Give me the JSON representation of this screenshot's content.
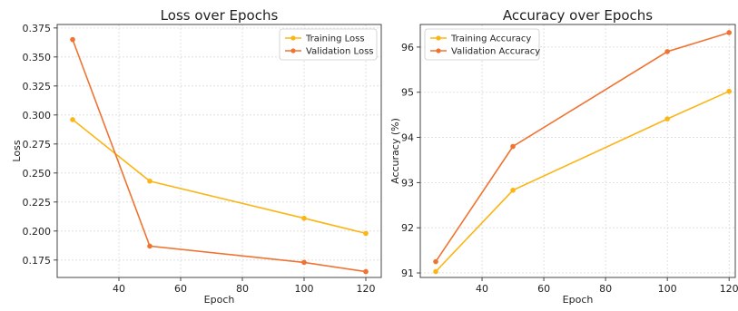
{
  "chart_data": [
    {
      "type": "line",
      "title": "Loss over Epochs",
      "xlabel": "Epoch",
      "ylabel": "Loss",
      "xlim": [
        20,
        125
      ],
      "ylim": [
        0.16,
        0.378
      ],
      "xticks": [
        40,
        60,
        80,
        100,
        120
      ],
      "yticks": [
        0.175,
        0.2,
        0.225,
        0.25,
        0.275,
        0.3,
        0.325,
        0.35,
        0.375
      ],
      "ytick_labels": [
        "0.175",
        "0.200",
        "0.225",
        "0.250",
        "0.275",
        "0.300",
        "0.325",
        "0.350",
        "0.375"
      ],
      "grid": true,
      "legend": "top-right",
      "x": [
        25,
        50,
        100,
        120
      ],
      "series": [
        {
          "name": "Training Loss",
          "values": [
            0.296,
            0.243,
            0.211,
            0.198
          ],
          "color": "#FBB514"
        },
        {
          "name": "Validation Loss",
          "values": [
            0.365,
            0.187,
            0.173,
            0.165
          ],
          "color": "#EF7432"
        }
      ]
    },
    {
      "type": "line",
      "title": "Accuracy over Epochs",
      "xlabel": "Epoch",
      "ylabel": "Accuracy (%)",
      "xlim": [
        20,
        122
      ],
      "ylim": [
        90.9,
        96.5
      ],
      "xticks": [
        40,
        60,
        80,
        100,
        120
      ],
      "yticks": [
        91,
        92,
        93,
        94,
        95,
        96
      ],
      "ytick_labels": [
        "91",
        "92",
        "93",
        "94",
        "95",
        "96"
      ],
      "grid": true,
      "legend": "top-left",
      "x": [
        25,
        50,
        100,
        120
      ],
      "series": [
        {
          "name": "Training Accuracy",
          "values": [
            91.03,
            92.83,
            94.41,
            95.02
          ],
          "color": "#FBB514"
        },
        {
          "name": "Validation Accuracy",
          "values": [
            91.25,
            93.8,
            95.9,
            96.32
          ],
          "color": "#EF7432"
        }
      ]
    }
  ]
}
